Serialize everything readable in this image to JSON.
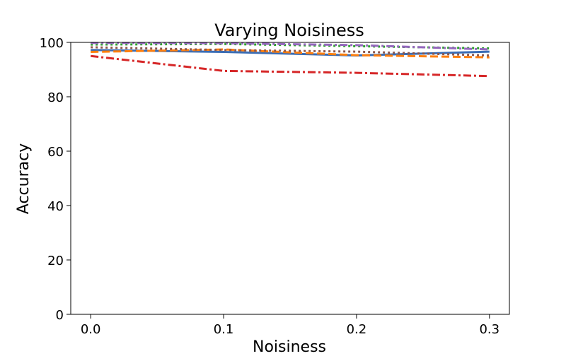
{
  "chart_data": {
    "type": "line",
    "title": "Varying Noisiness",
    "xlabel": "Noisiness",
    "ylabel": "Accuracy",
    "xlim": [
      -0.015,
      0.315
    ],
    "ylim": [
      0,
      100
    ],
    "xticks": [
      0.0,
      0.1,
      0.2,
      0.3
    ],
    "xtick_labels": [
      "0.0",
      "0.1",
      "0.2",
      "0.3"
    ],
    "yticks": [
      0,
      20,
      40,
      60,
      80,
      100
    ],
    "ytick_labels": [
      "0",
      "20",
      "40",
      "60",
      "80",
      "100"
    ],
    "grid": false,
    "legend": "none",
    "x": [
      0.0,
      0.1,
      0.2,
      0.3
    ],
    "series": [
      {
        "color": "#3a6db5",
        "style": "solid",
        "values": [
          97.2,
          96.5,
          95.2,
          96.6
        ]
      },
      {
        "color": "#ff7f0e",
        "style": "dashed",
        "values": [
          96.5,
          97.4,
          95.3,
          94.5
        ]
      },
      {
        "color": "#2ca02c",
        "style": "dotted",
        "values": [
          99.2,
          99.4,
          98.6,
          97.8
        ]
      },
      {
        "color": "#d62728",
        "style": "dashdot",
        "values": [
          95.0,
          89.5,
          88.8,
          87.6
        ]
      },
      {
        "color": "#9467bd",
        "style": "dashdot",
        "values": [
          99.8,
          99.7,
          99.0,
          97.4
        ]
      },
      {
        "color": "#8c564b",
        "style": "dotted",
        "values": [
          98.2,
          97.2,
          96.6,
          95.2
        ]
      }
    ]
  }
}
